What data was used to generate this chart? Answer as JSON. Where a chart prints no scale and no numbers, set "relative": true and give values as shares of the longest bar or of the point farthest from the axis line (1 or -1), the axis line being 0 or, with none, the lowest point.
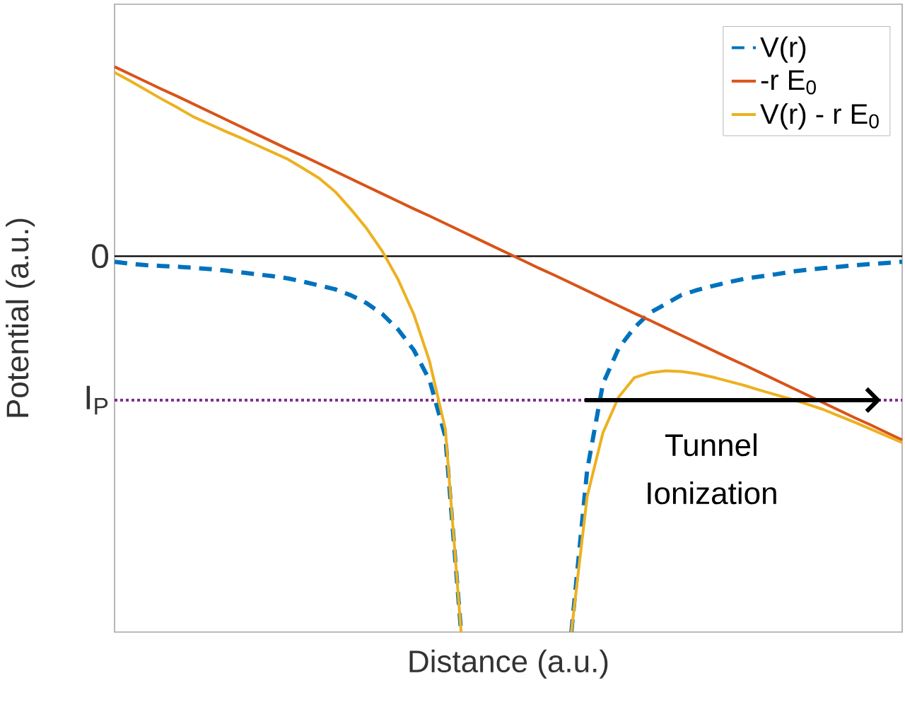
{
  "chart_data": {
    "type": "line",
    "relative": true,
    "xlabel": "Distance (a.u.)",
    "ylabel": "Potential (a.u.)",
    "legend": "top right",
    "marker": "none",
    "categories": [
      null,
      null,
      null,
      null,
      null,
      null,
      null,
      null,
      null,
      null,
      null,
      null,
      null,
      null,
      null,
      null,
      null,
      null,
      null,
      null,
      null,
      null,
      null,
      null,
      null,
      null,
      null,
      null,
      null,
      null,
      null,
      null,
      null,
      null,
      null,
      null,
      null,
      null,
      null,
      null,
      null,
      null,
      null,
      null,
      null,
      null,
      null,
      null,
      null,
      null,
      null
    ],
    "series": [
      {
        "name": "V(r)",
        "color": "#0072bd",
        "line_style": "dashed",
        "values": [
          -0.015,
          -0.02,
          -0.024,
          -0.026,
          -0.028,
          -0.031,
          -0.034,
          -0.038,
          -0.043,
          -0.048,
          -0.053,
          -0.059,
          -0.068,
          -0.078,
          -0.088,
          -0.104,
          -0.125,
          -0.154,
          -0.195,
          -0.25,
          -0.33,
          -0.48,
          -1.0,
          null,
          null,
          null,
          null,
          null,
          null,
          -1.0,
          -0.57,
          -0.34,
          -0.245,
          -0.19,
          -0.15,
          -0.127,
          -0.103,
          -0.09,
          -0.079,
          -0.069,
          -0.06,
          -0.054,
          -0.048,
          -0.041,
          -0.036,
          -0.032,
          -0.028,
          -0.024,
          -0.021,
          -0.018,
          -0.015
        ]
      },
      {
        "name": "-r E$_{0}$",
        "color": "#d95319",
        "line_style": "solid",
        "values": [
          0.504,
          0.484,
          0.464,
          0.444,
          0.425,
          0.405,
          0.385,
          0.365,
          0.345,
          0.325,
          0.305,
          0.285,
          0.266,
          0.246,
          0.226,
          0.206,
          0.186,
          0.166,
          0.146,
          0.126,
          0.107,
          0.087,
          0.067,
          0.047,
          0.027,
          0.007,
          -0.013,
          -0.033,
          -0.052,
          -0.072,
          -0.092,
          -0.112,
          -0.132,
          -0.152,
          -0.171,
          -0.191,
          -0.211,
          -0.231,
          -0.251,
          -0.271,
          -0.29,
          -0.31,
          -0.33,
          -0.35,
          -0.37,
          -0.39,
          -0.41,
          -0.43,
          -0.449,
          -0.469,
          -0.489
        ]
      },
      {
        "name": "V(r) - r E$_{0}$",
        "color": "#edb120",
        "line_style": "solid",
        "values": [
          0.489,
          0.466,
          0.442,
          0.418,
          0.395,
          0.371,
          0.352,
          0.333,
          0.315,
          0.296,
          0.277,
          0.258,
          0.233,
          0.207,
          0.172,
          0.125,
          0.074,
          0.013,
          -0.062,
          -0.155,
          -0.28,
          -0.46,
          -1.0,
          null,
          null,
          null,
          null,
          null,
          null,
          -1.0,
          -0.64,
          -0.47,
          -0.375,
          -0.323,
          -0.31,
          -0.305,
          -0.307,
          -0.313,
          -0.322,
          -0.333,
          -0.344,
          -0.357,
          -0.369,
          -0.381,
          -0.394,
          -0.408,
          -0.425,
          -0.442,
          -0.46,
          -0.478,
          -0.496
        ]
      }
    ],
    "ref_lines": [
      {
        "axis": "y",
        "value": 0,
        "label": "0",
        "color": "#000000",
        "line_style": "solid"
      },
      {
        "axis": "y",
        "value": -0.383,
        "label": "I$_{P}$",
        "color": "#7e2f8e",
        "line_style": "dotted"
      }
    ],
    "annotations": [
      "Tunnel Ionization"
    ]
  }
}
